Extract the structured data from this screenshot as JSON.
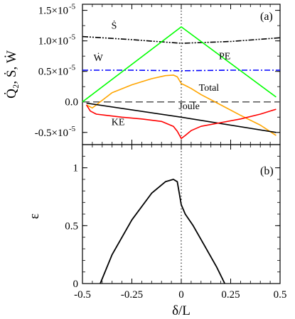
{
  "chart_data": [
    {
      "panel": "(a)",
      "type": "line",
      "ylabel": "Q̇₂, Ṡ, Ẇ",
      "xlim": [
        -0.5,
        0.5
      ],
      "ylim": [
        -7e-06,
        1.6e-05
      ],
      "yticks": [
        {
          "value": 1.5e-05,
          "mantissa": "1.5",
          "exp": "-5"
        },
        {
          "value": 1e-05,
          "mantissa": "1.0",
          "exp": "-5"
        },
        {
          "value": 5e-06,
          "mantissa": "0.5",
          "exp": "-5"
        },
        {
          "value": 0.0,
          "mantissa": "0.0",
          "exp": ""
        },
        {
          "value": -5e-06,
          "mantissa": "-0.5",
          "exp": "-5"
        }
      ],
      "tick_base": "×10",
      "series": [
        {
          "name": "Ṡ",
          "color": "#000000",
          "dash": "8,2,2,2,2,2",
          "x": [
            -0.5,
            -0.25,
            0,
            0.25,
            0.5
          ],
          "y": [
            1.07e-05,
            1.02e-05,
            9.6e-06,
            9.9e-06,
            1.05e-05
          ]
        },
        {
          "name": "Ẇ",
          "color": "#0000ff",
          "dash": "8,3,2,3",
          "x": [
            -0.5,
            -0.25,
            0,
            0.25,
            0.5
          ],
          "y": [
            5.2e-06,
            5.2e-06,
            5.1e-06,
            5.2e-06,
            5.2e-06
          ]
        },
        {
          "name": "PE",
          "color": "#00ff00",
          "dash": "",
          "x": [
            -0.5,
            0,
            0.48
          ],
          "y": [
            0.0,
            1.23e-05,
            8e-07
          ]
        },
        {
          "name": "Total",
          "color": "#ffa500",
          "dash": "",
          "x": [
            -0.48,
            -0.45,
            -0.35,
            -0.25,
            -0.15,
            -0.08,
            -0.04,
            -0.02,
            0,
            0.02,
            0.05,
            0.1,
            0.2,
            0.3,
            0.4,
            0.48
          ],
          "y": [
            -5e-07,
            -1e-06,
            1.5e-06,
            2.8e-06,
            3.8e-06,
            4.3e-06,
            4.4e-06,
            4.1e-06,
            3e-06,
            2.7e-06,
            2.2e-06,
            1.2e-06,
            -5e-07,
            -2.2e-06,
            -3.8e-06,
            -5.5e-06
          ]
        },
        {
          "name": "Joule",
          "color": "#000000",
          "dash": "",
          "x": [
            -0.48,
            0,
            0.48
          ],
          "y": [
            -2e-07,
            -2.5e-06,
            -5e-06
          ]
        },
        {
          "name": "KE",
          "color": "#ff0000",
          "dash": "",
          "x": [
            -0.48,
            -0.46,
            -0.43,
            -0.38,
            -0.3,
            -0.2,
            -0.1,
            -0.04,
            -0.02,
            0,
            0.02,
            0.05,
            0.1,
            0.2,
            0.3,
            0.4,
            0.48
          ],
          "y": [
            -5e-07,
            -1.5e-06,
            -2e-06,
            -2.2e-06,
            -2.5e-06,
            -2.8e-06,
            -3.2e-06,
            -4e-06,
            -4.8e-06,
            -6e-06,
            -5.5e-06,
            -4.7e-06,
            -4e-06,
            -3.4e-06,
            -2.8e-06,
            -2e-06,
            -1.2e-06
          ]
        }
      ],
      "reference_lines": [
        {
          "axis": "y",
          "value": 0.0,
          "style": "dashed",
          "color": "#555555"
        },
        {
          "axis": "x",
          "value": 0.0,
          "style": "dotted",
          "color": "#000000"
        }
      ],
      "annotations": [
        {
          "text": "Ṡ",
          "x": -0.34,
          "y": 1.2e-05
        },
        {
          "text": "Ẇ",
          "x": -0.42,
          "y": 6.7e-06
        },
        {
          "text": "PE",
          "x": 0.22,
          "y": 7e-06
        },
        {
          "text": "Total",
          "x": 0.14,
          "y": 1.8e-06
        },
        {
          "text": "Joule",
          "x": 0.04,
          "y": -1.2e-06
        },
        {
          "text": "KE",
          "x": -0.32,
          "y": -3.8e-06
        }
      ]
    },
    {
      "panel": "(b)",
      "type": "line",
      "xlabel": "δ/L",
      "ylabel": "ε",
      "xlim": [
        -0.5,
        0.5
      ],
      "ylim": [
        0,
        1.2
      ],
      "xticks": [
        "-0.5",
        "-0.25",
        "0",
        "0.25",
        "0.5"
      ],
      "yticks": [
        "0",
        "0.5",
        "1"
      ],
      "series": [
        {
          "color": "#000000",
          "x": [
            -0.41,
            -0.35,
            -0.25,
            -0.15,
            -0.08,
            -0.04,
            -0.02,
            0,
            0.02,
            0.06,
            0.12,
            0.18,
            0.22
          ],
          "y": [
            0.0,
            0.25,
            0.55,
            0.78,
            0.88,
            0.9,
            0.88,
            0.68,
            0.6,
            0.5,
            0.32,
            0.14,
            0.0
          ]
        }
      ],
      "reference_lines": [
        {
          "axis": "x",
          "value": 0.0,
          "style": "dotted",
          "color": "#000000"
        }
      ]
    }
  ]
}
